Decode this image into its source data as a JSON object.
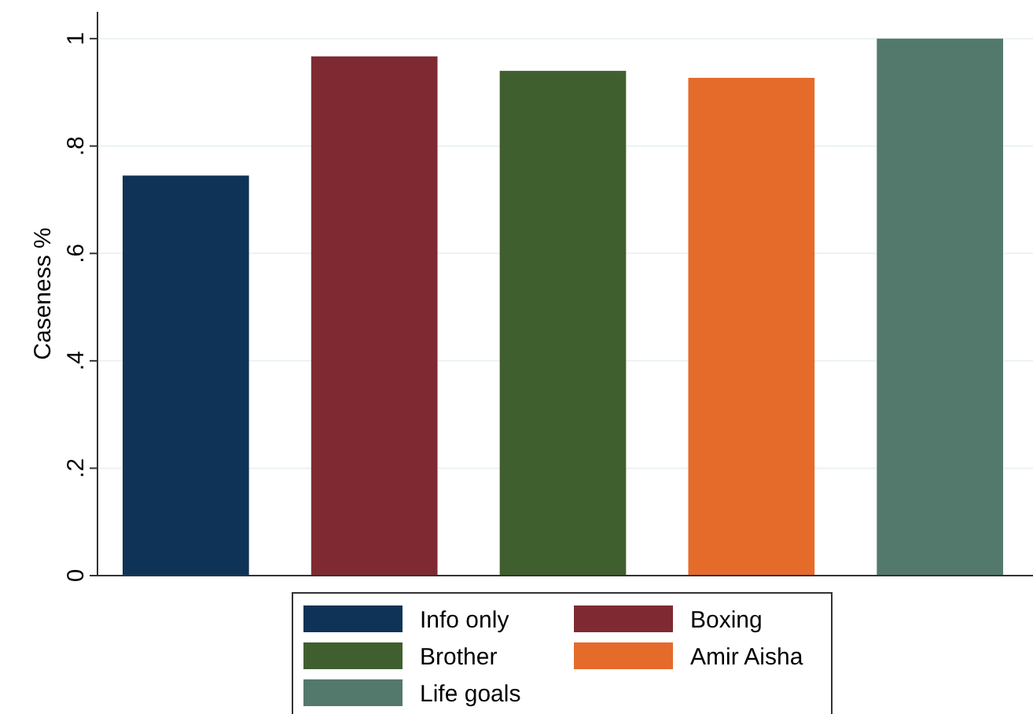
{
  "chart_data": {
    "type": "bar",
    "ylabel": "Caseness %",
    "categories": [
      null,
      null,
      null,
      null,
      null
    ],
    "series": [
      {
        "name": "Info only",
        "color": "#0e3356",
        "values": [
          0.745,
          null,
          null,
          null,
          null
        ]
      },
      {
        "name": "Boxing",
        "color": "#7f2a32",
        "values": [
          null,
          0.967,
          null,
          null,
          null
        ]
      },
      {
        "name": "Brother",
        "color": "#405f2e",
        "values": [
          null,
          null,
          0.94,
          null,
          null
        ]
      },
      {
        "name": "Amir Aisha",
        "color": "#e56b2b",
        "values": [
          null,
          null,
          null,
          0.927,
          null
        ]
      },
      {
        "name": "Life goals",
        "color": "#53796c",
        "values": [
          null,
          null,
          null,
          null,
          1
        ]
      }
    ],
    "ylim": [
      0,
      1.05
    ],
    "yticks": [
      0,
      {
        "value": 0.2,
        "label": ".2"
      },
      {
        "value": 0.4,
        "label": ".4"
      },
      {
        "value": 0.6,
        "label": ".6"
      },
      {
        "value": 0.8,
        "label": ".8"
      },
      1
    ],
    "grid": "y",
    "legend": "bottom",
    "tick_labels": "y"
  }
}
